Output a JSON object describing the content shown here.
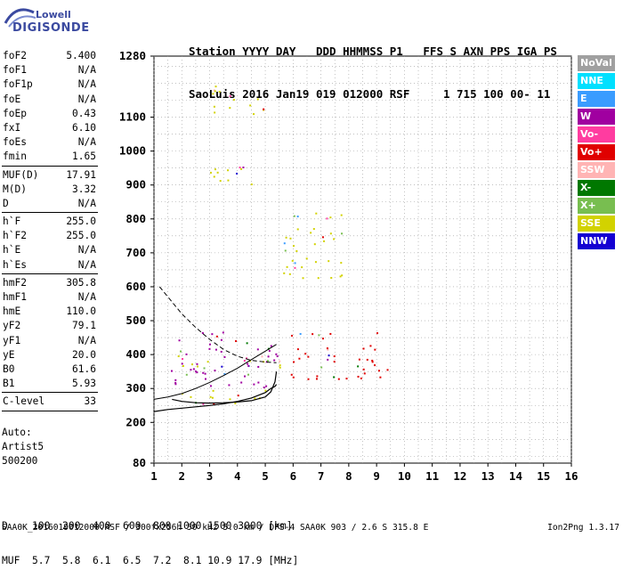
{
  "logo": {
    "line1": "Lowell",
    "line2": "DIGISONDE"
  },
  "header": {
    "line1": "Station YYYY DAY   DDD HHMMSS P1   FFS S AXN PPS IGA PS",
    "line2": "SaoLuis 2016 Jan19 019 012000 RSF     1 715 100 00- 11"
  },
  "params": [
    {
      "key": "foF2",
      "value": "5.400"
    },
    {
      "key": "foF1",
      "value": "N/A"
    },
    {
      "key": "foF1p",
      "value": "N/A"
    },
    {
      "key": "foE",
      "value": "N/A"
    },
    {
      "key": "foEp",
      "value": "0.43"
    },
    {
      "key": "fxI",
      "value": "6.10"
    },
    {
      "key": "foEs",
      "value": "N/A"
    },
    {
      "key": "fmin",
      "value": "1.65",
      "sep_after": true
    },
    {
      "key": "MUF(D)",
      "value": "17.91"
    },
    {
      "key": "M(D)",
      "value": "3.32"
    },
    {
      "key": "D",
      "value": "N/A",
      "sep_after": true
    },
    {
      "key": "h`F",
      "value": "255.0"
    },
    {
      "key": "h`F2",
      "value": "255.0"
    },
    {
      "key": "h`E",
      "value": "N/A"
    },
    {
      "key": "h`Es",
      "value": "N/A",
      "sep_after": true
    },
    {
      "key": "hmF2",
      "value": "305.8"
    },
    {
      "key": "hmF1",
      "value": "N/A"
    },
    {
      "key": "hmE",
      "value": "110.0"
    },
    {
      "key": "yF2",
      "value": "79.1"
    },
    {
      "key": "yF1",
      "value": "N/A"
    },
    {
      "key": "yE",
      "value": "20.0"
    },
    {
      "key": "B0",
      "value": "61.6"
    },
    {
      "key": "B1",
      "value": "5.93",
      "sep_after": true
    },
    {
      "key": "C-level",
      "value": "33",
      "sep_after": true
    }
  ],
  "auto": {
    "line1": "Auto:",
    "line2": "Artist5",
    "line3": "500200"
  },
  "legend": [
    {
      "label": "NoVal",
      "color": "#a0a0a0"
    },
    {
      "label": "NNE",
      "color": "#00e0ff"
    },
    {
      "label": "E",
      "color": "#3a9cff"
    },
    {
      "label": "W",
      "color": "#a000a0"
    },
    {
      "label": "Vo-",
      "color": "#ff3ca0"
    },
    {
      "label": "Vo+",
      "color": "#e00000"
    },
    {
      "label": "SSW",
      "color": "#ffb4b4"
    },
    {
      "label": "X-",
      "color": "#007800"
    },
    {
      "label": "X+",
      "color": "#78be50"
    },
    {
      "label": "SSE",
      "color": "#d2d200"
    },
    {
      "label": "NNW",
      "color": "#1400d2"
    }
  ],
  "muf_table": {
    "line1": "D    100  200  400  600  800 1000 1500 3000 [km]",
    "line2": "MUF  5.7  5.8  6.1  6.5  7.2  8.1 10.9 17.9 [MHz]"
  },
  "footer": {
    "left": "SAA0K_2016019012000.RSF / 300fx256h 50 kHz 5.0 km / DPS-4 SAA0K 903 / 2.6 S 315.8 E",
    "right": "Ion2Png 1.3.17"
  },
  "chart_data": {
    "type": "scatter",
    "x_ticks": [
      "1",
      "2",
      "3",
      "4",
      "5",
      "6",
      "7",
      "8",
      "9",
      "10",
      "11",
      "12",
      "13",
      "14",
      "15",
      "16"
    ],
    "y_ticks": [
      "80",
      "200",
      "300",
      "400",
      "500",
      "600",
      "700",
      "800",
      "900",
      "1000",
      "1100",
      "1280"
    ],
    "xlim": [
      1,
      16
    ],
    "ylim": [
      80,
      1280
    ],
    "grid": true,
    "legend_position": "right",
    "traces": {
      "virtual_height_trace": [
        [
          1.65,
          268
        ],
        [
          2.0,
          262
        ],
        [
          2.5,
          258
        ],
        [
          3.0,
          257
        ],
        [
          3.5,
          258
        ],
        [
          4.0,
          260
        ],
        [
          4.5,
          264
        ],
        [
          5.0,
          275
        ],
        [
          5.2,
          290
        ],
        [
          5.35,
          320
        ],
        [
          5.4,
          350
        ]
      ],
      "profile_curve": [
        [
          1.0,
          232
        ],
        [
          1.5,
          238
        ],
        [
          2.0,
          242
        ],
        [
          2.5,
          246
        ],
        [
          3.0,
          250
        ],
        [
          3.5,
          255
        ],
        [
          4.0,
          262
        ],
        [
          4.5,
          272
        ],
        [
          5.0,
          288
        ],
        [
          5.2,
          300
        ],
        [
          5.35,
          306
        ],
        [
          5.4,
          312
        ]
      ],
      "dashed_curve": [
        [
          1.2,
          600
        ],
        [
          1.6,
          560
        ],
        [
          2.0,
          520
        ],
        [
          2.5,
          480
        ],
        [
          3.0,
          445
        ],
        [
          3.5,
          415
        ],
        [
          4.0,
          395
        ],
        [
          4.5,
          383
        ],
        [
          5.0,
          378
        ],
        [
          5.4,
          376
        ]
      ],
      "muf_curve": [
        [
          1.0,
          268
        ],
        [
          1.5,
          275
        ],
        [
          2.0,
          285
        ],
        [
          2.5,
          300
        ],
        [
          3.0,
          318
        ],
        [
          3.5,
          338
        ],
        [
          4.0,
          360
        ],
        [
          4.5,
          385
        ],
        [
          5.0,
          410
        ],
        [
          5.4,
          430
        ]
      ]
    },
    "echo_regions": [
      {
        "series": "SSE",
        "x": [
          1.6,
          5.4
        ],
        "y": [
          255,
          300
        ]
      },
      {
        "series": "SSE",
        "x": [
          1.7,
          5.6
        ],
        "y": [
          360,
          400
        ]
      },
      {
        "series": "W",
        "x": [
          1.6,
          5.6
        ],
        "y": [
          300,
          470
        ]
      },
      {
        "series": "Vo+",
        "x": [
          5.8,
          9.5
        ],
        "y": [
          330,
          470
        ]
      },
      {
        "series": "SSE",
        "x": [
          5.6,
          7.8
        ],
        "y": [
          620,
          820
        ]
      },
      {
        "series": "SSE",
        "x": [
          3.0,
          4.8
        ],
        "y": [
          880,
          960
        ]
      },
      {
        "series": "SSE",
        "x": [
          3.0,
          5.0
        ],
        "y": [
          1110,
          1200
        ]
      }
    ]
  }
}
